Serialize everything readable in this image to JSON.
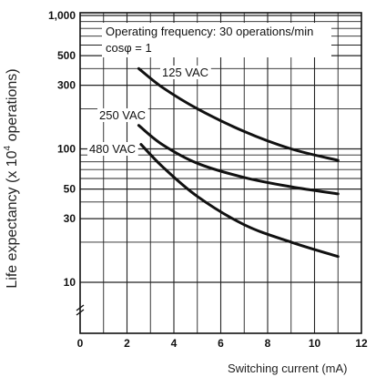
{
  "chart_data": {
    "type": "line",
    "title": "",
    "xlabel": "Switching current (mA)",
    "ylabel_prefix": "Life expectancy (x 10",
    "ylabel_exp": "4",
    "ylabel_suffix": " operations)",
    "xlim": [
      0,
      12
    ],
    "x_ticks": [
      0,
      2,
      4,
      6,
      8,
      10,
      12
    ],
    "y_ticks": [
      {
        "value": 1000,
        "label": "1,000"
      },
      {
        "value": 500,
        "label": "500"
      },
      {
        "value": 300,
        "label": "300"
      },
      {
        "value": 100,
        "label": "100"
      },
      {
        "value": 50,
        "label": "50"
      },
      {
        "value": 30,
        "label": "30"
      },
      {
        "value": 10,
        "label": "10"
      }
    ],
    "y_scale": "log (broken below 10)",
    "grid": true,
    "annotations": [
      "Operating frequency: 30 operations/min",
      "cosφ = 1"
    ],
    "series": [
      {
        "name": "125 VAC",
        "x": [
          2.5,
          3.5,
          5,
          7,
          9,
          11
        ],
        "y": [
          400,
          290,
          200,
          135,
          100,
          82
        ]
      },
      {
        "name": "250 VAC",
        "x": [
          2.5,
          3.5,
          5,
          7,
          9,
          11
        ],
        "y": [
          150,
          108,
          78,
          61,
          52,
          46
        ]
      },
      {
        "name": "480 VAC",
        "x": [
          2.6,
          3.5,
          5,
          7,
          9,
          11
        ],
        "y": [
          108,
          74,
          44,
          27,
          20,
          15.6
        ]
      }
    ]
  }
}
